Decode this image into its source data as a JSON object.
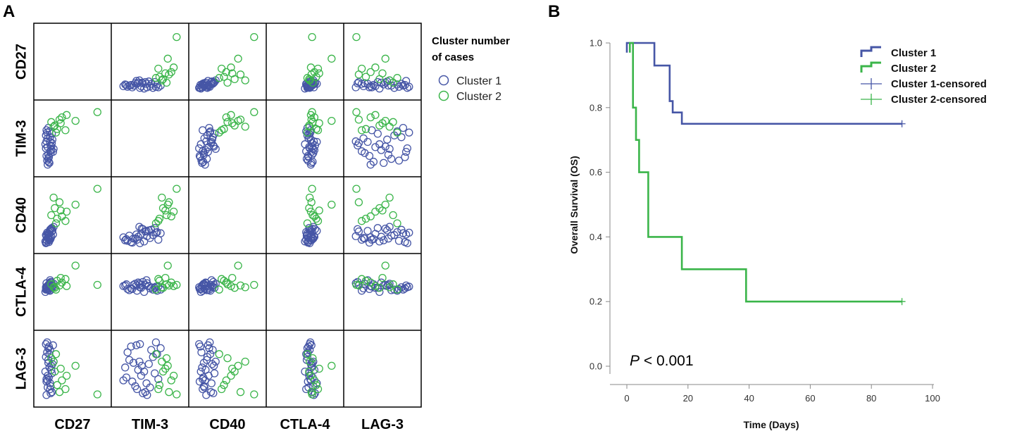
{
  "colors": {
    "cluster1": "#4656a6",
    "cluster2": "#3bb54a",
    "grid": "#000000",
    "axis": "#888888"
  },
  "chart_data": [
    {
      "panel": "A",
      "type": "scatter",
      "subtype": "scatterplot-matrix",
      "variables": [
        "CD27",
        "TIM-3",
        "CD40",
        "CTLA-4",
        "LAG-3"
      ],
      "legend": {
        "title_lines": [
          "Cluster number",
          "of cases"
        ],
        "entries": [
          "Cluster 1",
          "Cluster 2"
        ],
        "placement": "right"
      },
      "cluster1_cases": [
        [
          0.05,
          0.33,
          0.02,
          0.58,
          0.92
        ],
        [
          0.07,
          0.12,
          0.06,
          0.55,
          0.78
        ],
        [
          0.09,
          0.22,
          0.1,
          0.62,
          0.6
        ],
        [
          0.04,
          0.4,
          0.05,
          0.5,
          0.45
        ],
        [
          0.08,
          0.05,
          0.12,
          0.6,
          0.3
        ],
        [
          0.12,
          0.28,
          0.08,
          0.52,
          0.15
        ],
        [
          0.06,
          0.45,
          0.14,
          0.65,
          0.05
        ],
        [
          0.1,
          0.18,
          0.04,
          0.56,
          0.88
        ],
        [
          0.05,
          0.55,
          0.16,
          0.54,
          0.7
        ],
        [
          0.11,
          0.08,
          0.07,
          0.61,
          0.52
        ],
        [
          0.08,
          0.35,
          0.18,
          0.57,
          0.38
        ],
        [
          0.13,
          0.25,
          0.1,
          0.64,
          0.2
        ],
        [
          0.07,
          0.6,
          0.2,
          0.59,
          0.95
        ],
        [
          0.09,
          0.15,
          0.15,
          0.53,
          0.65
        ],
        [
          0.15,
          0.42,
          0.22,
          0.62,
          0.1
        ],
        [
          0.12,
          0.52,
          0.25,
          0.58,
          0.82
        ],
        [
          0.14,
          0.3,
          0.13,
          0.66,
          0.48
        ],
        [
          0.06,
          0.2,
          0.03,
          0.55,
          0.28
        ],
        [
          0.16,
          0.48,
          0.24,
          0.6,
          0.58
        ],
        [
          0.1,
          0.1,
          0.09,
          0.63,
          0.35
        ],
        [
          0.11,
          0.62,
          0.21,
          0.52,
          0.75
        ],
        [
          0.13,
          0.38,
          0.26,
          0.67,
          0.08
        ],
        [
          0.15,
          0.58,
          0.28,
          0.57,
          0.42
        ],
        [
          0.17,
          0.27,
          0.17,
          0.61,
          0.9
        ],
        [
          0.08,
          0.5,
          0.11,
          0.56,
          0.18
        ],
        [
          0.18,
          0.32,
          0.3,
          0.64,
          0.62
        ],
        [
          0.12,
          0.44,
          0.23,
          0.7,
          0.25
        ],
        [
          0.09,
          0.68,
          0.19,
          0.54,
          0.85
        ],
        [
          0.14,
          0.36,
          0.27,
          0.62,
          0.55
        ],
        [
          0.06,
          0.64,
          0.08,
          0.59,
          0.32
        ]
      ],
      "cluster2_cases": [
        [
          0.14,
          0.78,
          0.5,
          0.63,
          0.68
        ],
        [
          0.2,
          0.72,
          0.62,
          0.57,
          0.45
        ],
        [
          0.24,
          0.66,
          0.44,
          0.69,
          0.22
        ],
        [
          0.28,
          0.82,
          0.72,
          0.61,
          0.1
        ],
        [
          0.22,
          0.6,
          0.36,
          0.54,
          0.75
        ],
        [
          0.3,
          0.76,
          0.58,
          0.74,
          0.5
        ],
        [
          0.32,
          0.86,
          0.48,
          0.66,
          0.3
        ],
        [
          0.18,
          0.7,
          0.8,
          0.58,
          0.62
        ],
        [
          0.38,
          0.64,
          0.4,
          0.72,
          0.15
        ],
        [
          0.92,
          0.95,
          0.95,
          0.62,
          0.06
        ],
        [
          0.55,
          0.8,
          0.68,
          0.95,
          0.55
        ],
        [
          0.4,
          0.9,
          0.56,
          0.6,
          0.38
        ]
      ],
      "note": "Per-case variable values estimated visually, normalized 0-1 within each variable's cell (no axis scale printed)."
    },
    {
      "panel": "B",
      "type": "line",
      "subtype": "kaplan-meier-step",
      "xlabel": "Time (Days)",
      "ylabel": "Overall Survival (OS)",
      "xlim": [
        0,
        100
      ],
      "ylim": [
        0,
        1
      ],
      "x_ticks": [
        0,
        20,
        40,
        60,
        80,
        100
      ],
      "y_ticks": [
        0.0,
        0.2,
        0.4,
        0.6,
        0.8,
        1.0
      ],
      "y_tick_labels": [
        "0.0",
        "0.2",
        "0.4",
        "0.6",
        "0.8",
        "1.0"
      ],
      "series": [
        {
          "name": "Cluster 1",
          "key": "cluster1",
          "x": [
            0,
            0,
            9,
            9,
            14,
            14,
            15,
            15,
            18,
            18,
            90
          ],
          "y": [
            0.97,
            1.0,
            1.0,
            0.93,
            0.93,
            0.82,
            0.82,
            0.785,
            0.785,
            0.75,
            0.75
          ]
        },
        {
          "name": "Cluster 2",
          "key": "cluster2",
          "x": [
            1,
            1,
            2,
            2,
            3,
            3,
            4,
            4,
            7,
            7,
            18,
            18,
            39,
            39,
            90
          ],
          "y": [
            0.97,
            1.0,
            1.0,
            0.8,
            0.8,
            0.7,
            0.7,
            0.6,
            0.6,
            0.4,
            0.4,
            0.3,
            0.3,
            0.2,
            0.2
          ]
        }
      ],
      "censored": [
        {
          "series": "Cluster 1-censored",
          "key": "cluster1",
          "x": 90,
          "y": 0.75
        },
        {
          "series": "Cluster 2-censored",
          "key": "cluster2",
          "x": 90,
          "y": 0.2
        }
      ],
      "legend": {
        "entries": [
          "Cluster 1",
          "Cluster 2",
          "Cluster 1-censored",
          "Cluster 2-censored"
        ],
        "placement": "top-right"
      },
      "annotation": {
        "prefix": "P",
        "text": " < 0.001"
      }
    }
  ],
  "panels": {
    "a_letter": "A",
    "b_letter": "B"
  }
}
